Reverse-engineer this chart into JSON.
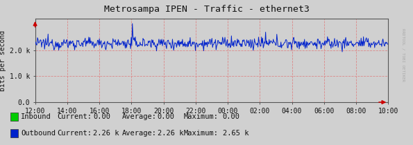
{
  "title": "Metrosampa IPEN - Traffic - ethernet3",
  "ylabel": "bits per second",
  "x_tick_labels": [
    "12:00",
    "14:00",
    "16:00",
    "18:00",
    "20:00",
    "22:00",
    "00:00",
    "02:00",
    "04:00",
    "06:00",
    "08:00",
    "10:00"
  ],
  "y_tick_labels": [
    "0.0",
    "1.0 k",
    "2.0 k"
  ],
  "y_tick_values": [
    0,
    1000,
    2000
  ],
  "ylim": [
    0,
    3200
  ],
  "fig_bg_color": "#d0d0d0",
  "plot_bg_color": "#d0d0d0",
  "grid_color_v": "#dd8888",
  "grid_color_h": "#dd8888",
  "outbound_color": "#0022cc",
  "inbound_color": "#00cc00",
  "outbound_avg": 2260,
  "outbound_std": 110,
  "outbound_spike_idx": 165,
  "outbound_spike_val": 600,
  "sidebar_text": "RRDTOOL / TOBI OETIKER",
  "sidebar_color": "#aaaaaa",
  "legend_inbound_label": "Inbound",
  "legend_outbound_label": "Outbound",
  "legend_current_in": "0.00",
  "legend_avg_in": "0.00",
  "legend_max_in": "0.00",
  "legend_current_out": "2.26 k",
  "legend_avg_out": "2.26 k",
  "legend_max_out": "2.65 k",
  "arrow_color": "#cc0000",
  "title_fontsize": 9.5,
  "tick_fontsize": 7,
  "legend_fontsize": 7.5,
  "ylabel_fontsize": 7
}
